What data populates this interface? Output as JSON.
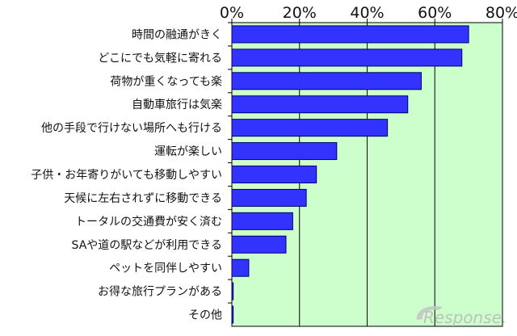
{
  "chart_data": {
    "type": "bar",
    "orientation": "horizontal",
    "categories": [
      "時間の融通がきく",
      "どこにでも気軽に寄れる",
      "荷物が重くなっても楽",
      "自動車旅行は気楽",
      "他の手段で行けない場所へも行ける",
      "運転が楽しい",
      "子供・お年寄りがいても移動しやすい",
      "天候に左右されずに移動できる",
      "トータルの交通費が安く済む",
      "SAや道の駅などが利用できる",
      "ペットを同伴しやすい",
      "お得な旅行プランがある",
      "その他"
    ],
    "values": [
      70,
      68,
      56,
      52,
      46,
      31,
      25,
      22,
      18,
      16,
      5,
      0.4,
      0.4
    ],
    "x_ticks": [
      "0%",
      "20%",
      "40%",
      "60%",
      "80%"
    ],
    "xlim": [
      0,
      80
    ],
    "axis_position": "top",
    "grid": true,
    "legend": "none",
    "title": "",
    "xlabel": "",
    "ylabel": ""
  },
  "colors": {
    "plot_background": "#ccffcc",
    "bar_fill": "#3333ff",
    "bar_stroke": "#000066",
    "gridline": "#000000"
  },
  "watermark": {
    "text": "Response.",
    "icon": "response-logo-swoosh-icon"
  }
}
